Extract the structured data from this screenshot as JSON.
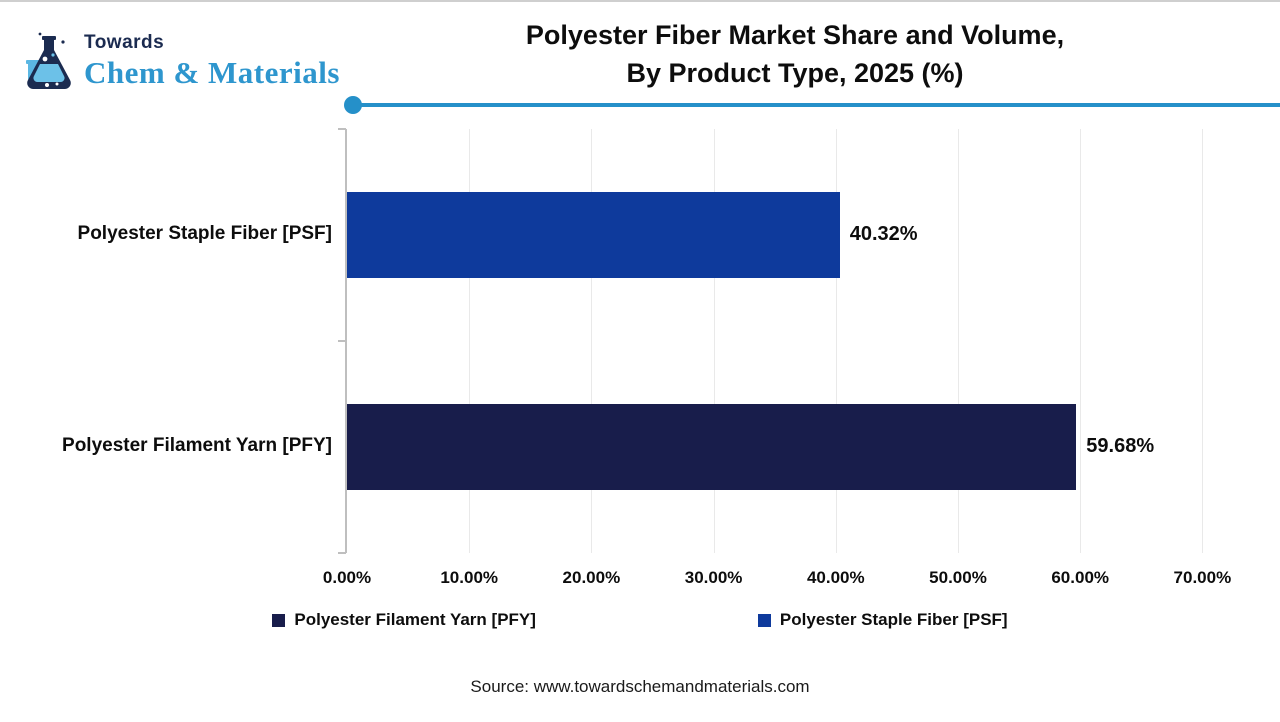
{
  "header": {
    "logo_top": "Towards",
    "logo_bottom": "Chem & Materials",
    "title_line1": "Polyester Fiber Market Share and Volume,",
    "title_line2": "By Product Type, 2025 (%)"
  },
  "chart_data": {
    "type": "bar",
    "orientation": "horizontal",
    "title": "Polyester Fiber Market Share and Volume, By Product Type, 2025 (%)",
    "categories": [
      "Polyester Staple Fiber [PSF]",
      "Polyester Filament Yarn [PFY]"
    ],
    "values": [
      40.32,
      59.68
    ],
    "value_labels": [
      "40.32%",
      "59.68%"
    ],
    "bar_colors": [
      "#0e3a9c",
      "#181d4b"
    ],
    "x_tick_labels": [
      "0.00%",
      "10.00%",
      "20.00%",
      "30.00%",
      "40.00%",
      "50.00%",
      "60.00%",
      "70.00%"
    ],
    "x_tick_values": [
      0,
      10,
      20,
      30,
      40,
      50,
      60,
      70
    ],
    "xlim": [
      0,
      76.3
    ],
    "grid": true,
    "legend_position": "bottom",
    "legend": [
      {
        "label": "Polyester Filament Yarn [PFY]",
        "color": "#181d4b"
      },
      {
        "label": "Polyester Staple Fiber [PSF]",
        "color": "#0e3a9c"
      }
    ]
  },
  "footer": {
    "source": "Source: www.towardschemandmaterials.com"
  },
  "colors": {
    "accent_line": "#2590c9",
    "logo_navy": "#1b2b50",
    "logo_blue": "#2e96ce",
    "axis": "#bfbfbf",
    "gridline": "#e9e9e9"
  }
}
